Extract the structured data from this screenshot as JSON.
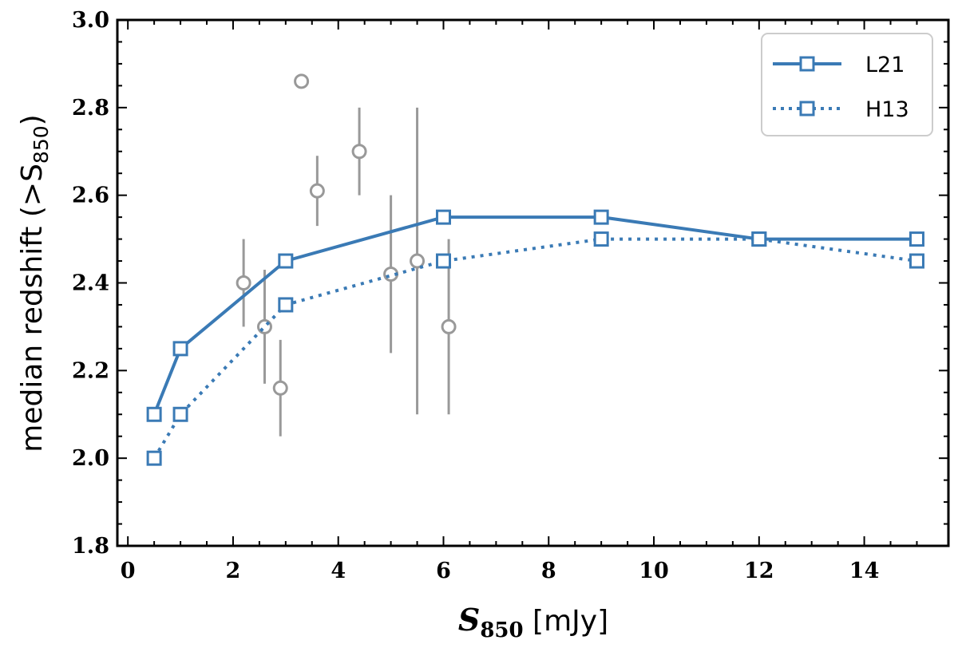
{
  "chart_data": {
    "type": "line",
    "title": "",
    "xlabel": {
      "symbol": "S",
      "subscript": "850",
      "unit": " [mJy]"
    },
    "ylabel": {
      "text": "median redshift (>S",
      "subscript": "850",
      "suffix": ")"
    },
    "xlim": [
      -0.2,
      15.6
    ],
    "ylim": [
      1.8,
      3.0
    ],
    "xticks": [
      0,
      2,
      4,
      6,
      8,
      10,
      12,
      14
    ],
    "xtick_labels": [
      "0",
      "2",
      "4",
      "6",
      "8",
      "10",
      "12",
      "14"
    ],
    "yticks": [
      1.8,
      2.0,
      2.2,
      2.4,
      2.6,
      2.8,
      3.0
    ],
    "ytick_labels": [
      "1.8",
      "2.0",
      "2.2",
      "2.4",
      "2.6",
      "2.8",
      "3.0"
    ],
    "legend_position": "top-right",
    "series": [
      {
        "name": "L21",
        "style": "solid",
        "marker": "square",
        "color": "#3a7ab5",
        "x": [
          0.5,
          1,
          3,
          6,
          9,
          12,
          15
        ],
        "y": [
          2.1,
          2.25,
          2.45,
          2.55,
          2.55,
          2.5,
          2.5
        ]
      },
      {
        "name": "H13",
        "style": "dotted",
        "marker": "square",
        "color": "#3a7ab5",
        "x": [
          0.5,
          1,
          3,
          6,
          9,
          12,
          15
        ],
        "y": [
          2.0,
          2.1,
          2.35,
          2.45,
          2.5,
          2.5,
          2.45
        ]
      }
    ],
    "observations": {
      "marker": "circle",
      "color": "#999999",
      "points": [
        {
          "x": 2.2,
          "y": 2.4,
          "ylow": 2.3,
          "yhigh": 2.5
        },
        {
          "x": 2.6,
          "y": 2.3,
          "ylow": 2.17,
          "yhigh": 2.43
        },
        {
          "x": 2.9,
          "y": 2.16,
          "ylow": 2.05,
          "yhigh": 2.27
        },
        {
          "x": 3.3,
          "y": 2.86,
          "ylow": null,
          "yhigh": null
        },
        {
          "x": 3.6,
          "y": 2.61,
          "ylow": 2.53,
          "yhigh": 2.69
        },
        {
          "x": 4.4,
          "y": 2.7,
          "ylow": 2.6,
          "yhigh": 2.8
        },
        {
          "x": 5.0,
          "y": 2.42,
          "ylow": 2.24,
          "yhigh": 2.6
        },
        {
          "x": 5.5,
          "y": 2.45,
          "ylow": 2.1,
          "yhigh": 2.8
        },
        {
          "x": 6.1,
          "y": 2.3,
          "ylow": 2.1,
          "yhigh": 2.5
        }
      ]
    }
  }
}
